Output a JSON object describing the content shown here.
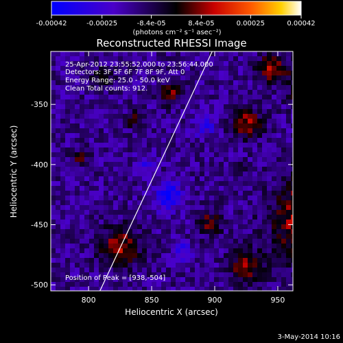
{
  "chart_data": {
    "type": "heatmap",
    "title": "Reconstructed RHESSI Image",
    "xlabel": "Heliocentric X (arcsec)",
    "ylabel": "Heliocentric Y (arcsec)",
    "xlim": [
      770,
      962
    ],
    "ylim": [
      -505,
      -306
    ],
    "x_ticks": [
      800,
      850,
      900,
      950
    ],
    "y_ticks": [
      -350,
      -400,
      -450,
      -500
    ],
    "colorbar": {
      "ticks": [
        "-0.00042",
        "-0.00025",
        "-8.4e-05",
        "8.4e-05",
        "0.00025",
        "0.00042"
      ],
      "tick_values": [
        -0.00042,
        -0.00025,
        -8.4e-05,
        8.4e-05,
        0.00025,
        0.00042
      ],
      "range": [
        -0.00042,
        0.00042
      ],
      "unit_label": "(photons cm⁻² s⁻¹ asec⁻²)"
    },
    "annotations": [
      "25-Apr-2012 23:55:52.000 to 23:56:44.000",
      "Detectors: 3F 5F 6F 7F 8F 9F, Att 0",
      "Energy Range: 25.0 - 50.0 keV",
      "Clean    Total counts: 912."
    ],
    "peak_label": "Position of Peak = [938,-504]",
    "peak_position": [
      938,
      -504
    ],
    "limb_line": [
      [
        809,
        -505
      ],
      [
        898,
        -306
      ]
    ]
  },
  "footer": {
    "timestamp": "3-May-2014 10:16"
  },
  "colors": {
    "background": "#000000",
    "foreground": "#ffffff"
  }
}
